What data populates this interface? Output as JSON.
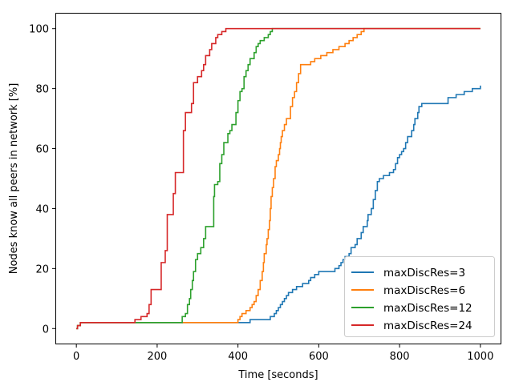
{
  "chart_data": {
    "type": "line",
    "title": "",
    "xlabel": "Time [seconds]",
    "ylabel": "Nodes know all peers in network [%]",
    "xlim": [
      -50,
      1050
    ],
    "ylim": [
      -5,
      105
    ],
    "xticks": [
      0,
      200,
      400,
      600,
      800,
      1000
    ],
    "yticks": [
      0,
      20,
      40,
      60,
      80,
      100
    ],
    "xtick_labels": [
      "0",
      "200",
      "400",
      "600",
      "800",
      "1000"
    ],
    "ytick_labels": [
      "0",
      "20",
      "40",
      "60",
      "80",
      "100"
    ],
    "grid": false,
    "legend_position": "lower-right",
    "step": true,
    "series": [
      {
        "name": "maxDiscRes=3",
        "color": "#1f77b4",
        "points": [
          [
            0,
            0
          ],
          [
            3,
            1
          ],
          [
            10,
            2
          ],
          [
            400,
            2
          ],
          [
            430,
            3
          ],
          [
            470,
            3
          ],
          [
            480,
            4
          ],
          [
            490,
            5
          ],
          [
            495,
            6
          ],
          [
            500,
            7
          ],
          [
            505,
            8
          ],
          [
            510,
            9
          ],
          [
            515,
            10
          ],
          [
            520,
            11
          ],
          [
            525,
            12
          ],
          [
            535,
            13
          ],
          [
            545,
            14
          ],
          [
            560,
            15
          ],
          [
            575,
            16
          ],
          [
            580,
            17
          ],
          [
            590,
            18
          ],
          [
            600,
            19
          ],
          [
            640,
            20
          ],
          [
            650,
            21
          ],
          [
            655,
            22
          ],
          [
            660,
            23
          ],
          [
            665,
            24
          ],
          [
            675,
            25
          ],
          [
            680,
            27
          ],
          [
            690,
            28
          ],
          [
            695,
            30
          ],
          [
            705,
            32
          ],
          [
            710,
            34
          ],
          [
            720,
            36
          ],
          [
            722,
            38
          ],
          [
            730,
            40
          ],
          [
            735,
            43
          ],
          [
            740,
            46
          ],
          [
            745,
            49
          ],
          [
            750,
            50
          ],
          [
            760,
            51
          ],
          [
            775,
            52
          ],
          [
            785,
            53
          ],
          [
            790,
            55
          ],
          [
            795,
            57
          ],
          [
            800,
            58
          ],
          [
            805,
            59
          ],
          [
            810,
            60
          ],
          [
            815,
            62
          ],
          [
            820,
            64
          ],
          [
            830,
            66
          ],
          [
            835,
            68
          ],
          [
            838,
            70
          ],
          [
            845,
            72
          ],
          [
            848,
            74
          ],
          [
            855,
            75
          ],
          [
            900,
            75
          ],
          [
            920,
            77
          ],
          [
            940,
            78
          ],
          [
            960,
            79
          ],
          [
            980,
            80
          ],
          [
            1000,
            81
          ]
        ]
      },
      {
        "name": "maxDiscRes=6",
        "color": "#ff7f0e",
        "points": [
          [
            0,
            0
          ],
          [
            3,
            1
          ],
          [
            10,
            2
          ],
          [
            395,
            2
          ],
          [
            400,
            3
          ],
          [
            405,
            4
          ],
          [
            410,
            5
          ],
          [
            420,
            6
          ],
          [
            430,
            7
          ],
          [
            435,
            8
          ],
          [
            440,
            9
          ],
          [
            445,
            11
          ],
          [
            450,
            13
          ],
          [
            455,
            16
          ],
          [
            460,
            19
          ],
          [
            463,
            22
          ],
          [
            465,
            25
          ],
          [
            470,
            28
          ],
          [
            472,
            30
          ],
          [
            475,
            33
          ],
          [
            478,
            36
          ],
          [
            480,
            40
          ],
          [
            482,
            44
          ],
          [
            485,
            47
          ],
          [
            488,
            50
          ],
          [
            492,
            54
          ],
          [
            495,
            56
          ],
          [
            500,
            58
          ],
          [
            503,
            60
          ],
          [
            505,
            62
          ],
          [
            507,
            64
          ],
          [
            510,
            66
          ],
          [
            515,
            68
          ],
          [
            520,
            70
          ],
          [
            530,
            74
          ],
          [
            535,
            77
          ],
          [
            540,
            79
          ],
          [
            545,
            82
          ],
          [
            550,
            85
          ],
          [
            555,
            88
          ],
          [
            565,
            88
          ],
          [
            580,
            89
          ],
          [
            590,
            90
          ],
          [
            605,
            91
          ],
          [
            620,
            92
          ],
          [
            635,
            93
          ],
          [
            650,
            94
          ],
          [
            665,
            95
          ],
          [
            675,
            96
          ],
          [
            685,
            97
          ],
          [
            695,
            98
          ],
          [
            705,
            99
          ],
          [
            712,
            100
          ],
          [
            1000,
            100
          ]
        ]
      },
      {
        "name": "maxDiscRes=12",
        "color": "#2ca02c",
        "points": [
          [
            0,
            0
          ],
          [
            3,
            1
          ],
          [
            10,
            2
          ],
          [
            260,
            2
          ],
          [
            262,
            4
          ],
          [
            270,
            5
          ],
          [
            275,
            8
          ],
          [
            280,
            10
          ],
          [
            283,
            13
          ],
          [
            287,
            16
          ],
          [
            290,
            19
          ],
          [
            295,
            23
          ],
          [
            300,
            25
          ],
          [
            308,
            27
          ],
          [
            315,
            30
          ],
          [
            320,
            34
          ],
          [
            330,
            34
          ],
          [
            340,
            44
          ],
          [
            342,
            48
          ],
          [
            350,
            49
          ],
          [
            355,
            55
          ],
          [
            360,
            58
          ],
          [
            365,
            62
          ],
          [
            375,
            65
          ],
          [
            380,
            66
          ],
          [
            385,
            68
          ],
          [
            395,
            72
          ],
          [
            400,
            76
          ],
          [
            405,
            79
          ],
          [
            410,
            80
          ],
          [
            415,
            84
          ],
          [
            420,
            86
          ],
          [
            425,
            88
          ],
          [
            430,
            90
          ],
          [
            440,
            92
          ],
          [
            445,
            94
          ],
          [
            450,
            95
          ],
          [
            455,
            96
          ],
          [
            465,
            97
          ],
          [
            475,
            98
          ],
          [
            480,
            99
          ],
          [
            485,
            100
          ],
          [
            1000,
            100
          ]
        ]
      },
      {
        "name": "maxDiscRes=24",
        "color": "#d62728",
        "points": [
          [
            0,
            0
          ],
          [
            3,
            1
          ],
          [
            10,
            2
          ],
          [
            140,
            2
          ],
          [
            145,
            3
          ],
          [
            150,
            3
          ],
          [
            160,
            4
          ],
          [
            175,
            5
          ],
          [
            180,
            8
          ],
          [
            185,
            13
          ],
          [
            200,
            13
          ],
          [
            210,
            22
          ],
          [
            220,
            26
          ],
          [
            225,
            38
          ],
          [
            240,
            45
          ],
          [
            245,
            52
          ],
          [
            260,
            52
          ],
          [
            265,
            66
          ],
          [
            270,
            72
          ],
          [
            285,
            75
          ],
          [
            290,
            82
          ],
          [
            300,
            84
          ],
          [
            310,
            86
          ],
          [
            315,
            88
          ],
          [
            320,
            91
          ],
          [
            330,
            93
          ],
          [
            335,
            95
          ],
          [
            345,
            97
          ],
          [
            350,
            98
          ],
          [
            360,
            99
          ],
          [
            370,
            100
          ],
          [
            1000,
            100
          ]
        ]
      }
    ]
  }
}
